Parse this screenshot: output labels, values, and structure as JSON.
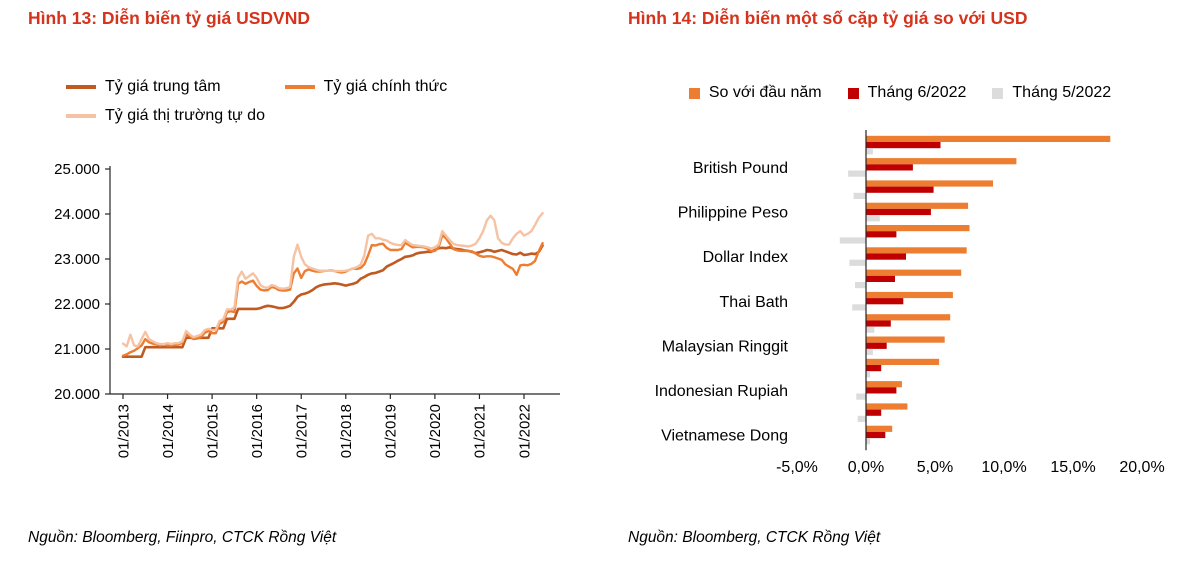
{
  "colors": {
    "title_red": "#d5331c",
    "line_dark": "#c05a21",
    "line_orange": "#ed7d31",
    "line_light": "#f5c3a4",
    "bar_orange": "#ed7d31",
    "bar_dark_red": "#c00000",
    "bar_gray": "#dcdcdc",
    "axis": "#262626"
  },
  "figures": {
    "fig13": {
      "title": "Hình 13: Diễn biến tỷ giá USDVND",
      "source": "Nguồn: Bloomberg, Fiinpro, CTCK Rồng Việt"
    },
    "fig14": {
      "title": "Hình 14: Diễn biến một số cặp tỷ giá so với USD",
      "source": "Nguồn:  Bloomberg, CTCK Rồng Việt"
    }
  },
  "chart_data": [
    {
      "type": "line",
      "title": "Diễn biến tỷ giá USDVND",
      "grid": false,
      "legend_position": "top",
      "ylim": [
        20,
        25
      ],
      "y_ticks": [
        "25.000",
        "24.000",
        "23.000",
        "22.000",
        "21.000",
        "20.000"
      ],
      "x_ticks": [
        "01/2013",
        "01/2014",
        "01/2015",
        "01/2016",
        "01/2017",
        "01/2018",
        "01/2019",
        "01/2020",
        "01/2021",
        "01/2022"
      ],
      "x_tick_index": [
        0,
        12,
        24,
        36,
        48,
        60,
        72,
        84,
        96,
        108
      ],
      "x_unit": "month (01/2013 - 06/2022)",
      "value_unit": "thousand VND per USD",
      "series": [
        {
          "name": "Tỷ giá trung tâm",
          "color": "#c05a21",
          "values": [
            20.83,
            20.83,
            20.83,
            20.83,
            20.83,
            20.83,
            21.04,
            21.04,
            21.04,
            21.04,
            21.04,
            21.04,
            21.04,
            21.04,
            21.04,
            21.04,
            21.04,
            21.25,
            21.25,
            21.25,
            21.25,
            21.25,
            21.25,
            21.25,
            21.46,
            21.46,
            21.46,
            21.46,
            21.67,
            21.67,
            21.67,
            21.89,
            21.89,
            21.89,
            21.89,
            21.89,
            21.89,
            21.91,
            21.94,
            21.96,
            21.95,
            21.93,
            21.91,
            21.91,
            21.93,
            21.96,
            22.05,
            22.16,
            22.21,
            22.23,
            22.26,
            22.31,
            22.37,
            22.41,
            22.43,
            22.44,
            22.45,
            22.46,
            22.45,
            22.43,
            22.41,
            22.43,
            22.45,
            22.48,
            22.56,
            22.6,
            22.65,
            22.68,
            22.69,
            22.72,
            22.75,
            22.83,
            22.87,
            22.91,
            22.96,
            23.0,
            23.05,
            23.06,
            23.08,
            23.12,
            23.14,
            23.15,
            23.16,
            23.16,
            23.2,
            23.24,
            23.25,
            23.24,
            23.26,
            23.23,
            23.22,
            23.21,
            23.19,
            23.18,
            23.16,
            23.13,
            23.15,
            23.17,
            23.2,
            23.19,
            23.16,
            23.18,
            23.2,
            23.17,
            23.14,
            23.11,
            23.1,
            23.14,
            23.09,
            23.1,
            23.12,
            23.11,
            23.16,
            23.3
          ]
        },
        {
          "name": "Tỷ giá chính thức",
          "color": "#ed7d31",
          "values": [
            20.85,
            20.88,
            20.93,
            20.96,
            21.02,
            21.08,
            21.22,
            21.15,
            21.12,
            21.1,
            21.08,
            21.1,
            21.08,
            21.08,
            21.09,
            21.1,
            21.14,
            21.33,
            21.28,
            21.22,
            21.23,
            21.27,
            21.36,
            21.4,
            21.35,
            21.35,
            21.56,
            21.6,
            21.82,
            21.84,
            21.82,
            22.45,
            22.5,
            22.45,
            22.49,
            22.52,
            22.4,
            22.32,
            22.3,
            22.31,
            22.38,
            22.36,
            22.31,
            22.3,
            22.3,
            22.32,
            22.68,
            22.79,
            22.58,
            22.73,
            22.77,
            22.74,
            22.72,
            22.72,
            22.73,
            22.74,
            22.75,
            22.73,
            22.71,
            22.7,
            22.72,
            22.76,
            22.79,
            22.78,
            22.8,
            22.88,
            23.08,
            23.31,
            23.3,
            23.33,
            23.34,
            23.25,
            23.2,
            23.2,
            23.2,
            23.22,
            23.36,
            23.31,
            23.26,
            23.27,
            23.27,
            23.26,
            23.23,
            23.17,
            23.18,
            23.26,
            23.53,
            23.46,
            23.34,
            23.22,
            23.19,
            23.18,
            23.18,
            23.18,
            23.17,
            23.12,
            23.07,
            23.05,
            23.06,
            23.06,
            23.04,
            23.01,
            22.98,
            22.88,
            22.83,
            22.78,
            22.65,
            22.86,
            22.87,
            22.86,
            22.89,
            22.96,
            23.18,
            23.35
          ]
        },
        {
          "name": "Tỷ giá thị trường tự do",
          "color": "#f5c3a4",
          "values": [
            21.12,
            21.06,
            21.32,
            21.08,
            21.06,
            21.22,
            21.38,
            21.22,
            21.17,
            21.13,
            21.11,
            21.11,
            21.13,
            21.11,
            21.13,
            21.13,
            21.17,
            21.4,
            21.32,
            21.26,
            21.29,
            21.32,
            21.42,
            21.45,
            21.42,
            21.42,
            21.62,
            21.66,
            21.88,
            21.88,
            21.92,
            22.58,
            22.72,
            22.56,
            22.62,
            22.68,
            22.58,
            22.42,
            22.37,
            22.36,
            22.42,
            22.4,
            22.35,
            22.34,
            22.35,
            22.38,
            23.05,
            23.32,
            23.05,
            22.88,
            22.82,
            22.79,
            22.76,
            22.74,
            22.74,
            22.74,
            22.74,
            22.73,
            22.73,
            22.73,
            22.74,
            22.76,
            22.79,
            22.82,
            22.87,
            23.08,
            23.52,
            23.56,
            23.46,
            23.46,
            23.43,
            23.41,
            23.36,
            23.33,
            23.31,
            23.31,
            23.42,
            23.36,
            23.31,
            23.3,
            23.29,
            23.28,
            23.26,
            23.23,
            23.26,
            23.32,
            23.62,
            23.52,
            23.42,
            23.34,
            23.31,
            23.3,
            23.29,
            23.28,
            23.3,
            23.34,
            23.46,
            23.62,
            23.86,
            23.96,
            23.86,
            23.46,
            23.36,
            23.32,
            23.32,
            23.46,
            23.56,
            23.62,
            23.52,
            23.56,
            23.62,
            23.76,
            23.92,
            24.02
          ]
        }
      ]
    },
    {
      "type": "bar",
      "orientation": "horizontal",
      "title": "Diễn biến một số cặp tỷ giá so với USD",
      "grid": false,
      "legend_position": "top",
      "unit": "%",
      "xlim": [
        -5,
        20
      ],
      "x_ticks": [
        "-5,0%",
        "0,0%",
        "5,0%",
        "10,0%",
        "15,0%",
        "20,0%"
      ],
      "x_tick_values": [
        -5,
        0,
        5,
        10,
        15,
        20
      ],
      "categories": [
        "",
        "British Pound",
        "",
        "Philippine Peso",
        "",
        "Dollar Index",
        "",
        "Thai Bath",
        "",
        "Malaysian Ringgit",
        "",
        "Indonesian Rupiah",
        "",
        "Vietnamese Dong"
      ],
      "categories_note": "axis labels are shown only for every second bar group in the source image",
      "series": [
        {
          "name": "So với đầu năm",
          "color": "#ed7d31",
          "values": [
            17.7,
            10.9,
            9.2,
            7.4,
            7.5,
            7.3,
            6.9,
            6.3,
            6.1,
            5.7,
            5.3,
            2.6,
            3.0,
            1.9
          ]
        },
        {
          "name": "Tháng 6/2022",
          "color": "#c00000",
          "values": [
            5.4,
            3.4,
            4.9,
            4.7,
            2.2,
            2.9,
            2.1,
            2.7,
            1.8,
            1.5,
            1.1,
            2.2,
            1.1,
            1.4
          ]
        },
        {
          "name": "Tháng 5/2022",
          "color": "#dcdcdc",
          "values": [
            0.5,
            -1.3,
            -0.9,
            1.0,
            -1.9,
            -1.2,
            -0.8,
            -1.0,
            0.6,
            0.5,
            0.3,
            -0.7,
            -0.6,
            0.3
          ]
        }
      ]
    }
  ]
}
